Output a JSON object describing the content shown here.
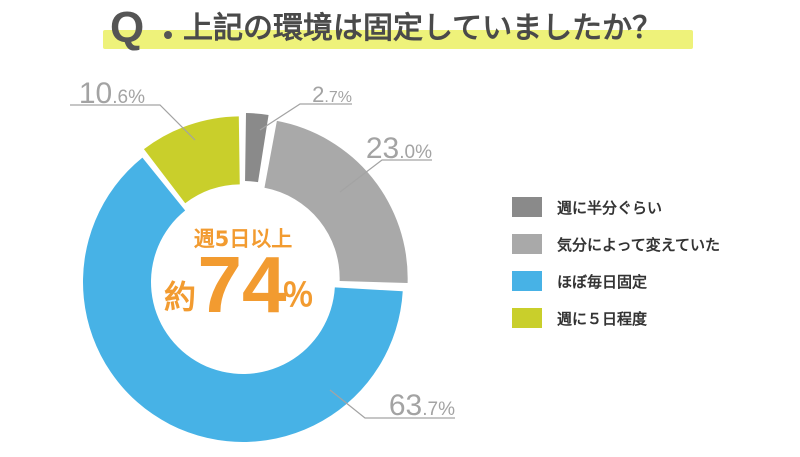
{
  "title": {
    "q_mark": "Q",
    "text": "上記の環境は固定していましたか？"
  },
  "center": {
    "subtitle": "週5日以上",
    "prefix": "約",
    "number": "74",
    "percent": "％"
  },
  "chart_data": {
    "type": "pie",
    "categories": [
      "週に半分ぐらい",
      "気分によって変えていた",
      "ほぼ毎日固定",
      "週に５日程度"
    ],
    "values": [
      2.7,
      23.0,
      63.7,
      10.6
    ],
    "value_labels": [
      "2.7%",
      "23.0%",
      "63.7%",
      "10.6%"
    ],
    "colors": [
      "#8a8a8a",
      "#a9a9a9",
      "#47b2e6",
      "#c9cf2b"
    ],
    "legend_position": "right",
    "title": "上記の環境は固定していましたか？"
  }
}
